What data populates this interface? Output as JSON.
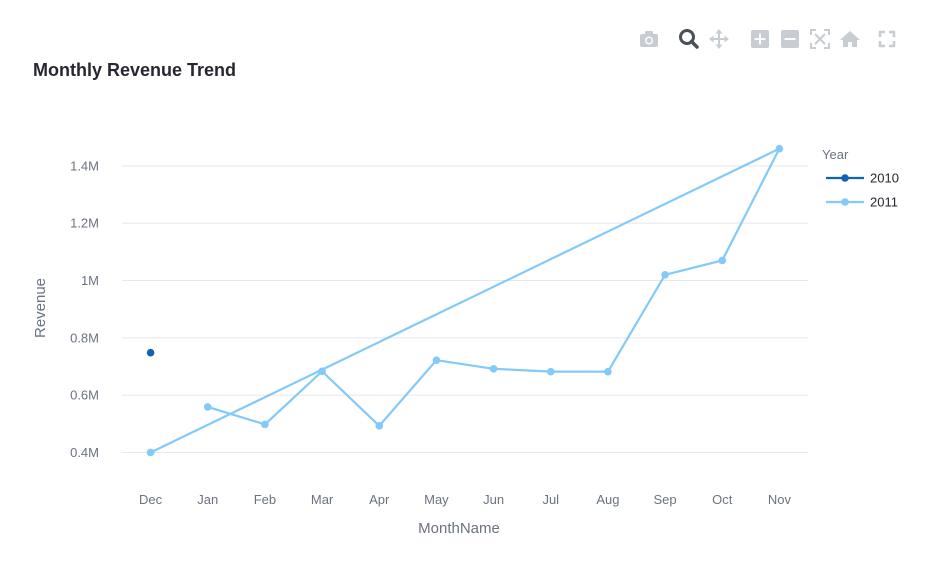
{
  "title": "Monthly Revenue Trend",
  "modebar": {
    "icons": [
      "camera-icon",
      "zoom-icon",
      "pan-icon",
      "zoom-in-icon",
      "zoom-out-icon",
      "autoscale-icon",
      "reset-axes-icon",
      "fullscreen-icon"
    ]
  },
  "chart_data": {
    "type": "line",
    "xlabel": "MonthName",
    "ylabel": "Revenue",
    "categories": [
      "Dec",
      "Jan",
      "Feb",
      "Mar",
      "Apr",
      "May",
      "Jun",
      "Jul",
      "Aug",
      "Sep",
      "Oct",
      "Nov"
    ],
    "yticks": [
      {
        "value": 400000,
        "label": "0.4M"
      },
      {
        "value": 600000,
        "label": "0.6M"
      },
      {
        "value": 800000,
        "label": "0.8M"
      },
      {
        "value": 1000000,
        "label": "1M"
      },
      {
        "value": 1200000,
        "label": "1.2M"
      },
      {
        "value": 1400000,
        "label": "1.4M"
      }
    ],
    "ylim": [
      290000,
      1560000
    ],
    "grid": true,
    "legend": {
      "title": "Year",
      "placement": "top-right"
    },
    "series": [
      {
        "name": "2010",
        "color": "#0f62b5",
        "points": [
          {
            "x": "Dec",
            "y": 748000
          }
        ]
      },
      {
        "name": "2011",
        "color": "#83c9f9",
        "points": [
          {
            "x": "Dec",
            "y": 400000
          },
          {
            "x": "Nov",
            "y": 1460000
          },
          {
            "x": "Oct",
            "y": 1070000
          },
          {
            "x": "Sep",
            "y": 1020000
          },
          {
            "x": "Aug",
            "y": 682000
          },
          {
            "x": "Jul",
            "y": 682000
          },
          {
            "x": "Jun",
            "y": 692000
          },
          {
            "x": "May",
            "y": 722000
          },
          {
            "x": "Apr",
            "y": 493000
          },
          {
            "x": "Mar",
            "y": 683000
          },
          {
            "x": "Feb",
            "y": 498000
          },
          {
            "x": "Jan",
            "y": 559000
          }
        ]
      }
    ]
  }
}
